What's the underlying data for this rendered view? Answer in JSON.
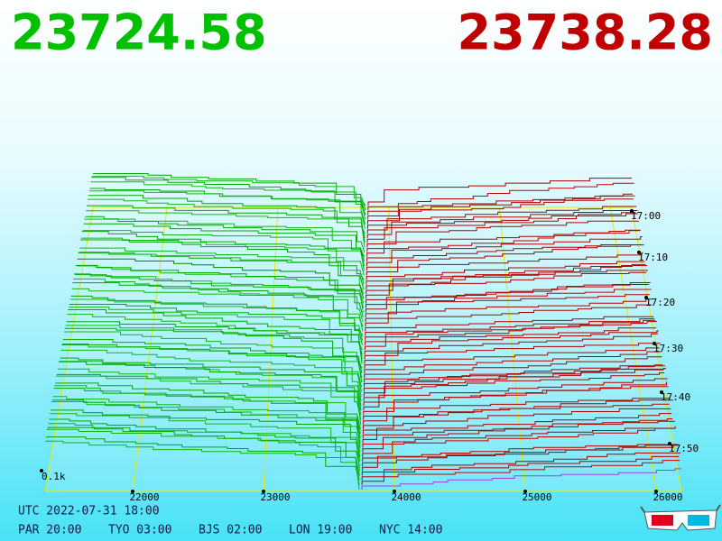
{
  "header": {
    "bid": "23724.58",
    "ask": "23738.28"
  },
  "price_axis": {
    "ticks": [
      "22000",
      "23000",
      "24000",
      "25000",
      "26000"
    ]
  },
  "time_axis": {
    "ticks": [
      "17:00",
      "17:10",
      "17:20",
      "17:30",
      "17:40",
      "17:50"
    ]
  },
  "volume_label": "0.1k",
  "footer": {
    "utc": "UTC 2022-07-31 18:00",
    "cities": [
      "PAR 20:00",
      "TYO 03:00",
      "BJS 02:00",
      "LON 19:00",
      "NYC 14:00"
    ]
  }
}
